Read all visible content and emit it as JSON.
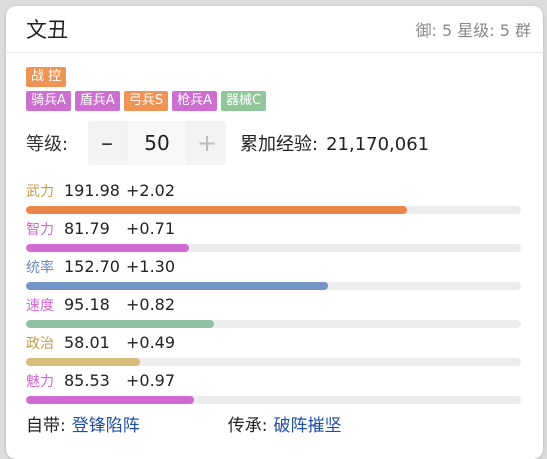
{
  "header": {
    "name": "文丑",
    "meta": "御: 5 星级: 5 群"
  },
  "role_tags": [
    {
      "label": "战 控",
      "color": "#ee9556"
    }
  ],
  "troop_tags": [
    {
      "label": "骑兵A",
      "color": "#cd6fd0"
    },
    {
      "label": "盾兵A",
      "color": "#cd6fd0"
    },
    {
      "label": "弓兵S",
      "color": "#ee9556"
    },
    {
      "label": "枪兵A",
      "color": "#cd6fd0"
    },
    {
      "label": "器械C",
      "color": "#8fc79a"
    }
  ],
  "level": {
    "label": "等级:",
    "minus": "–",
    "value": "50",
    "plus": "+",
    "exp_label": "累加经验:",
    "exp_value": "21,170,061"
  },
  "stats": [
    {
      "label": "武力",
      "value": "191.98",
      "bonus": "+2.02",
      "fill_pct": 77,
      "label_color": "#c79a46",
      "bar_color": "#ec8648"
    },
    {
      "label": "智力",
      "value": "81.79",
      "bonus": "+0.71",
      "fill_pct": 33,
      "label_color": "#cf68cf",
      "bar_color": "#d06ad0"
    },
    {
      "label": "统率",
      "value": "152.70",
      "bonus": "+1.30",
      "fill_pct": 61,
      "label_color": "#6a8ac0",
      "bar_color": "#7394c7"
    },
    {
      "label": "速度",
      "value": "95.18",
      "bonus": "+0.82",
      "fill_pct": 38,
      "label_color": "#cf68cf",
      "bar_color": "#8fc3a2"
    },
    {
      "label": "政治",
      "value": "58.01",
      "bonus": "+0.49",
      "fill_pct": 23,
      "label_color": "#c79a46",
      "bar_color": "#d8bd7a"
    },
    {
      "label": "魅力",
      "value": "85.53",
      "bonus": "+0.97",
      "fill_pct": 34,
      "label_color": "#cf68cf",
      "bar_color": "#d06ad0"
    }
  ],
  "footer": {
    "own_label": "自带:",
    "own_skill": "登锋陷阵",
    "inherit_label": "传承:",
    "inherit_skill": "破阵摧坚"
  }
}
